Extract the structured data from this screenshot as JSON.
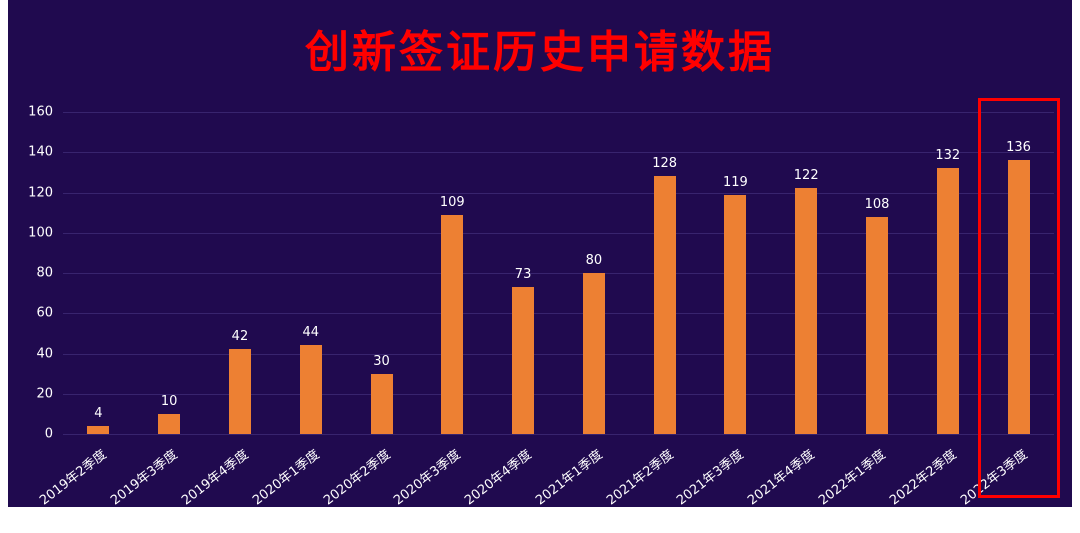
{
  "title": "创新签证历史申请数据",
  "colors": {
    "background": "#200A4F",
    "title": "#FF0000",
    "bar": "#ED8033",
    "axis_text": "#FFFFFF",
    "gridline": "#38246E",
    "highlight_box": "#FF0000"
  },
  "chart_data": {
    "type": "bar",
    "title": "创新签证历史申请数据",
    "categories": [
      "2019年2季度",
      "2019年3季度",
      "2019年4季度",
      "2020年1季度",
      "2020年2季度",
      "2020年3季度",
      "2020年4季度",
      "2021年1季度",
      "2021年2季度",
      "2021年3季度",
      "2021年4季度",
      "2022年1季度",
      "2022年2季度",
      "2022年3季度"
    ],
    "values": [
      4,
      10,
      42,
      44,
      30,
      109,
      73,
      80,
      128,
      119,
      122,
      108,
      132,
      136
    ],
    "xlabel": "",
    "ylabel": "",
    "ylim": [
      0,
      160
    ],
    "ytick_step": 20,
    "grid": "horizontal",
    "legend": "none",
    "data_labels": true,
    "highlight": {
      "category": "2022年3季度",
      "color": "#FF0000"
    }
  }
}
